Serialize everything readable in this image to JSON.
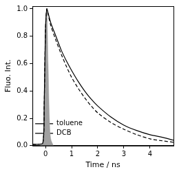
{
  "chart_data": {
    "type": "line",
    "x_label": "Time / ns",
    "y_label": "Fluo. Int.",
    "xlim": [
      -0.5,
      4.9
    ],
    "xticks": [
      0,
      1,
      2,
      3,
      4
    ],
    "ylim": [
      0,
      1.02
    ],
    "yticks": [
      {
        "value": 0,
        "label": "0.0"
      },
      {
        "value": 0.2,
        "label": "0.2"
      },
      {
        "value": 0.4,
        "label": "0.4"
      },
      {
        "value": 0.6,
        "label": "0.6"
      },
      {
        "value": 0.8,
        "label": "0.8"
      },
      {
        "value": 1.0,
        "label": "1.0"
      }
    ],
    "grid": false,
    "legend": "upper right",
    "series": [
      {
        "color": "#a0a0a0",
        "type": "area",
        "line_style": "solid",
        "marker": "none",
        "x": [
          -0.2,
          -0.1,
          -0.05,
          0,
          0.05,
          0.1,
          0.15,
          0.2,
          0.3
        ],
        "values": [
          0,
          0.02,
          0.3,
          0.85,
          1.0,
          0.6,
          0.2,
          0.05,
          0
        ]
      },
      {
        "name": "toluene",
        "color": "#000000",
        "line_style": "solid",
        "marker": "none",
        "x": [
          -0.5,
          -0.3,
          -0.1,
          -0.05,
          0,
          0.05,
          0.1,
          0.2,
          0.4,
          0.6,
          0.8,
          1.0,
          1.25,
          1.5,
          1.75,
          2.0,
          2.5,
          3.0,
          3.5,
          4.0,
          4.5,
          4.9
        ],
        "values": [
          0.01,
          0.01,
          0.02,
          0.3,
          0.85,
          1.0,
          0.97,
          0.9,
          0.8,
          0.7,
          0.62,
          0.55,
          0.47,
          0.4,
          0.34,
          0.29,
          0.21,
          0.15,
          0.11,
          0.08,
          0.06,
          0.04
        ]
      },
      {
        "name": "DCB",
        "color": "#000000",
        "line_style": "dashed",
        "marker": "none",
        "x": [
          -0.5,
          -0.3,
          -0.1,
          -0.05,
          0,
          0.05,
          0.1,
          0.2,
          0.4,
          0.6,
          0.8,
          1.0,
          1.25,
          1.5,
          1.75,
          2.0,
          2.5,
          3.0,
          3.5,
          4.0,
          4.5,
          4.9
        ],
        "values": [
          0.01,
          0.01,
          0.02,
          0.3,
          0.85,
          1.0,
          0.96,
          0.88,
          0.77,
          0.67,
          0.58,
          0.5,
          0.42,
          0.35,
          0.29,
          0.24,
          0.17,
          0.12,
          0.08,
          0.05,
          0.035,
          0.025
        ]
      }
    ]
  }
}
